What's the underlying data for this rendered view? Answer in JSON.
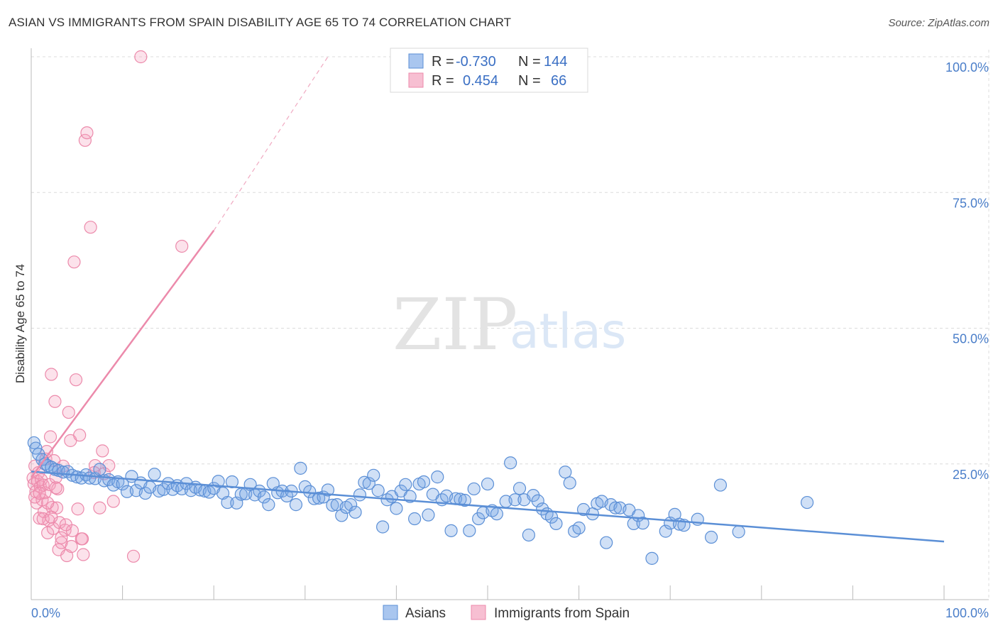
{
  "title": "ASIAN VS IMMIGRANTS FROM SPAIN DISABILITY AGE 65 TO 74 CORRELATION CHART",
  "source": "Source: ZipAtlas.com",
  "watermark": {
    "zip": "ZIP",
    "atlas": "atlas"
  },
  "legend_top": [
    {
      "r_label": "R =",
      "r_value": "-0.730",
      "n_label": "N =",
      "n_value": "144",
      "color": "#a9c6ef"
    },
    {
      "r_label": "R =",
      "r_value": "0.454",
      "n_label": "N =",
      "n_value": "66",
      "color": "#f7bfd2"
    }
  ],
  "legend_bottom": [
    {
      "label": "Asians",
      "color": "#a9c6ef"
    },
    {
      "label": "Immigrants from Spain",
      "color": "#f7bfd2"
    }
  ],
  "chart_data": {
    "type": "scatter",
    "title": "ASIAN VS IMMIGRANTS FROM SPAIN DISABILITY AGE 65 TO 74 CORRELATION CHART",
    "xlabel": "",
    "ylabel": "Disability Age 65 to 74",
    "xlim": [
      0,
      100
    ],
    "ylim": [
      0,
      100
    ],
    "x_tick_labels": [
      "0.0%",
      "100.0%"
    ],
    "y_ticks": [
      25,
      50,
      75,
      100
    ],
    "y_tick_labels": [
      "25.0%",
      "50.0%",
      "75.0%",
      "100.0%"
    ],
    "grid": true,
    "series": [
      {
        "name": "Asians",
        "color": "#5b8fd6",
        "r": -0.73,
        "n": 144,
        "trend": {
          "x": [
            0,
            100
          ],
          "y": [
            23.6,
            10.7
          ]
        },
        "points": [
          [
            0.3,
            28.9
          ],
          [
            0.5,
            27.9
          ],
          [
            0.8,
            26.8
          ],
          [
            1.2,
            25.8
          ],
          [
            1.5,
            25.0
          ],
          [
            1.8,
            24.7
          ],
          [
            2.2,
            24.4
          ],
          [
            2.6,
            24.0
          ],
          [
            3.0,
            23.8
          ],
          [
            3.5,
            23.5
          ],
          [
            4.0,
            23.6
          ],
          [
            4.5,
            22.9
          ],
          [
            5.0,
            22.6
          ],
          [
            5.5,
            22.4
          ],
          [
            6.0,
            23.0
          ],
          [
            6.4,
            22.4
          ],
          [
            7.0,
            22.3
          ],
          [
            7.5,
            24.0
          ],
          [
            8.0,
            21.9
          ],
          [
            8.5,
            22.1
          ],
          [
            9.0,
            21.1
          ],
          [
            9.5,
            21.7
          ],
          [
            10.0,
            21.3
          ],
          [
            10.5,
            19.9
          ],
          [
            11.0,
            22.7
          ],
          [
            11.5,
            20.1
          ],
          [
            12.0,
            21.5
          ],
          [
            12.5,
            19.6
          ],
          [
            13.0,
            20.7
          ],
          [
            13.5,
            23.1
          ],
          [
            14.0,
            20.0
          ],
          [
            14.5,
            20.3
          ],
          [
            15.0,
            21.4
          ],
          [
            15.5,
            20.3
          ],
          [
            16.0,
            21.0
          ],
          [
            16.5,
            20.4
          ],
          [
            17.0,
            21.4
          ],
          [
            17.5,
            20.1
          ],
          [
            18.0,
            20.7
          ],
          [
            18.5,
            20.2
          ],
          [
            19.0,
            20.0
          ],
          [
            19.5,
            19.8
          ],
          [
            20.0,
            20.5
          ],
          [
            20.5,
            21.8
          ],
          [
            21.0,
            19.6
          ],
          [
            21.5,
            17.9
          ],
          [
            22.0,
            21.7
          ],
          [
            22.5,
            17.8
          ],
          [
            23.0,
            19.4
          ],
          [
            23.5,
            19.5
          ],
          [
            24.0,
            21.2
          ],
          [
            24.5,
            19.3
          ],
          [
            25.0,
            20.0
          ],
          [
            25.5,
            18.9
          ],
          [
            26.0,
            17.5
          ],
          [
            26.5,
            21.4
          ],
          [
            27.0,
            19.7
          ],
          [
            27.5,
            20.0
          ],
          [
            28.0,
            19.1
          ],
          [
            28.5,
            20.0
          ],
          [
            29.0,
            17.5
          ],
          [
            29.5,
            24.2
          ],
          [
            30.0,
            20.8
          ],
          [
            30.5,
            19.9
          ],
          [
            31.0,
            18.6
          ],
          [
            31.5,
            18.7
          ],
          [
            32.0,
            18.9
          ],
          [
            32.5,
            20.2
          ],
          [
            33.0,
            17.4
          ],
          [
            33.5,
            17.5
          ],
          [
            34.0,
            15.5
          ],
          [
            34.5,
            17.0
          ],
          [
            35.0,
            17.5
          ],
          [
            35.5,
            16.1
          ],
          [
            36.0,
            19.3
          ],
          [
            36.5,
            21.6
          ],
          [
            37.0,
            21.4
          ],
          [
            37.5,
            22.9
          ],
          [
            38.0,
            20.1
          ],
          [
            38.5,
            13.4
          ],
          [
            39.0,
            18.4
          ],
          [
            39.5,
            19.0
          ],
          [
            40.0,
            16.8
          ],
          [
            40.5,
            20.0
          ],
          [
            41.0,
            21.2
          ],
          [
            41.5,
            19.0
          ],
          [
            42.0,
            14.9
          ],
          [
            42.5,
            21.3
          ],
          [
            43.0,
            21.7
          ],
          [
            43.5,
            15.6
          ],
          [
            44.0,
            19.4
          ],
          [
            44.5,
            22.6
          ],
          [
            45.0,
            18.4
          ],
          [
            45.5,
            19.1
          ],
          [
            46.0,
            12.7
          ],
          [
            46.5,
            18.6
          ],
          [
            47.0,
            18.5
          ],
          [
            47.5,
            18.3
          ],
          [
            48.0,
            12.7
          ],
          [
            48.5,
            20.4
          ],
          [
            49.0,
            14.9
          ],
          [
            49.5,
            16.0
          ],
          [
            50.0,
            21.3
          ],
          [
            50.5,
            16.4
          ],
          [
            51.0,
            15.8
          ],
          [
            52.0,
            18.1
          ],
          [
            52.5,
            25.2
          ],
          [
            53.0,
            18.4
          ],
          [
            53.5,
            20.5
          ],
          [
            54.0,
            18.4
          ],
          [
            54.5,
            11.9
          ],
          [
            55.0,
            19.2
          ],
          [
            55.5,
            18.2
          ],
          [
            56.0,
            16.7
          ],
          [
            56.5,
            15.8
          ],
          [
            57.0,
            15.2
          ],
          [
            57.5,
            14.0
          ],
          [
            58.5,
            23.5
          ],
          [
            59.0,
            21.5
          ],
          [
            59.5,
            12.6
          ],
          [
            60.0,
            13.2
          ],
          [
            60.5,
            16.6
          ],
          [
            61.5,
            15.8
          ],
          [
            62.0,
            17.7
          ],
          [
            62.5,
            18.1
          ],
          [
            63.0,
            10.5
          ],
          [
            63.5,
            17.5
          ],
          [
            64.0,
            16.9
          ],
          [
            64.5,
            16.9
          ],
          [
            65.5,
            16.5
          ],
          [
            66.0,
            14.0
          ],
          [
            66.5,
            15.5
          ],
          [
            67.0,
            14.1
          ],
          [
            68.0,
            7.6
          ],
          [
            69.5,
            12.6
          ],
          [
            70.0,
            14.1
          ],
          [
            70.5,
            15.7
          ],
          [
            71.0,
            13.9
          ],
          [
            71.5,
            13.7
          ],
          [
            73.0,
            14.8
          ],
          [
            74.5,
            11.5
          ],
          [
            75.5,
            21.1
          ],
          [
            77.5,
            12.5
          ],
          [
            85.0,
            17.9
          ]
        ]
      },
      {
        "name": "Immigrants from Spain",
        "color": "#ec8aab",
        "r": 0.454,
        "n": 66,
        "trend": {
          "x": [
            0,
            20
          ],
          "y": [
            22.5,
            68.0
          ],
          "dashed_to": [
            32.5,
            100
          ]
        },
        "points": [
          [
            0.2,
            22.4
          ],
          [
            0.3,
            21.3
          ],
          [
            0.4,
            24.6
          ],
          [
            0.5,
            19.9
          ],
          [
            0.6,
            17.8
          ],
          [
            0.7,
            21.8
          ],
          [
            0.8,
            23.4
          ],
          [
            0.9,
            15.0
          ],
          [
            1.0,
            20.8
          ],
          [
            1.1,
            22.1
          ],
          [
            1.2,
            18.4
          ],
          [
            1.3,
            21.1
          ],
          [
            1.4,
            16.2
          ],
          [
            1.5,
            19.7
          ],
          [
            1.6,
            25.9
          ],
          [
            1.7,
            27.3
          ],
          [
            1.8,
            12.3
          ],
          [
            1.9,
            14.6
          ],
          [
            2.0,
            21.2
          ],
          [
            2.1,
            30.0
          ],
          [
            2.2,
            41.5
          ],
          [
            2.3,
            17.0
          ],
          [
            2.4,
            13.1
          ],
          [
            2.5,
            25.6
          ],
          [
            2.6,
            36.5
          ],
          [
            2.7,
            22.5
          ],
          [
            2.8,
            16.9
          ],
          [
            2.9,
            20.4
          ],
          [
            3.0,
            9.2
          ],
          [
            3.1,
            14.2
          ],
          [
            3.3,
            10.5
          ],
          [
            3.5,
            24.6
          ],
          [
            3.7,
            12.8
          ],
          [
            3.9,
            8.1
          ],
          [
            4.1,
            34.5
          ],
          [
            4.3,
            29.3
          ],
          [
            4.5,
            12.7
          ],
          [
            4.7,
            62.2
          ],
          [
            4.9,
            40.5
          ],
          [
            5.1,
            16.7
          ],
          [
            5.3,
            30.3
          ],
          [
            5.5,
            11.2
          ],
          [
            5.7,
            8.3
          ],
          [
            5.9,
            84.6
          ],
          [
            6.1,
            86.0
          ],
          [
            6.5,
            68.6
          ],
          [
            7.0,
            24.7
          ],
          [
            7.5,
            16.9
          ],
          [
            7.8,
            27.4
          ],
          [
            8.0,
            23.2
          ],
          [
            8.5,
            24.7
          ],
          [
            11.2,
            8.0
          ],
          [
            12.0,
            100.0
          ],
          [
            16.5,
            65.1
          ],
          [
            0.4,
            18.9
          ],
          [
            0.9,
            19.6
          ],
          [
            1.3,
            14.9
          ],
          [
            1.8,
            17.8
          ],
          [
            2.2,
            15.2
          ],
          [
            2.7,
            20.6
          ],
          [
            3.3,
            11.4
          ],
          [
            3.8,
            13.8
          ],
          [
            4.4,
            9.8
          ],
          [
            5.6,
            11.2
          ],
          [
            6.9,
            23.4
          ],
          [
            9.0,
            18.1
          ]
        ]
      }
    ]
  }
}
